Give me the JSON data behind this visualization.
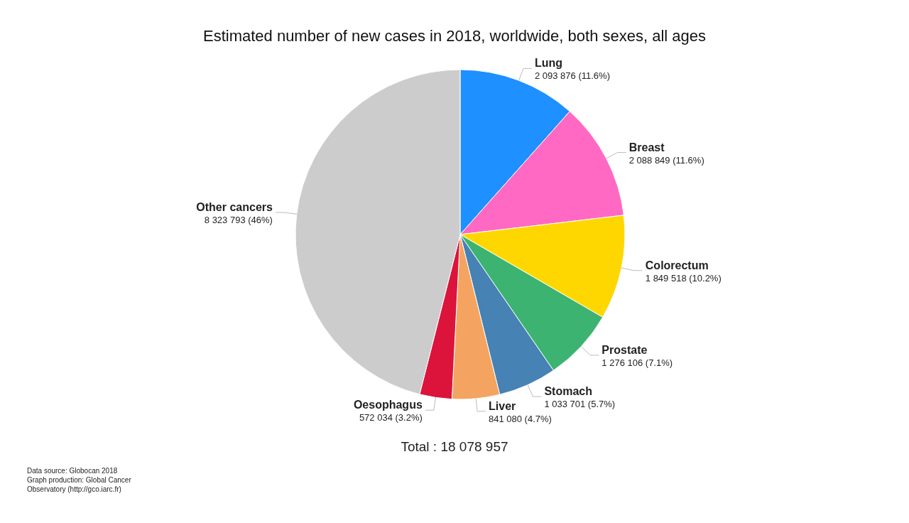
{
  "chart_data": {
    "type": "pie",
    "title": "Estimated number of new cases in 2018, worldwide, both sexes, all ages",
    "categories": [
      "Lung",
      "Breast",
      "Colorectum",
      "Prostate",
      "Stomach",
      "Liver",
      "Oesophagus",
      "Other cancers"
    ],
    "values": [
      2093876,
      2088849,
      1849518,
      1276106,
      1033701,
      841080,
      572034,
      8323793
    ],
    "colors": [
      "#1e90ff",
      "#ff69c4",
      "#ffd700",
      "#3cb371",
      "#4682b4",
      "#f4a460",
      "#dc143c",
      "#cccccc"
    ],
    "value_labels": [
      "2 093 876 (11.6%)",
      "2 088 849 (11.6%)",
      "1 849 518 (10.2%)",
      "1 276 106 (7.1%)",
      "1 033 701 (5.7%)",
      "841 080 (4.7%)",
      "572 034 (3.2%)",
      "8 323 793 (46%)"
    ],
    "annotations": [
      "Total : 18 078 957",
      "Data source: Globocan 2018",
      "Graph production: Global Cancer",
      "Observatory (http://gco.iarc.fr)"
    ]
  }
}
